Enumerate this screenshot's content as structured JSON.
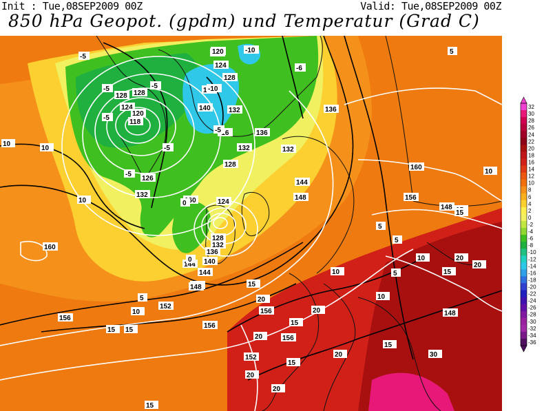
{
  "header": {
    "init": "Init : Tue,08SEP2009 00Z",
    "valid": "Valid: Tue,08SEP2009 00Z",
    "title": "850 hPa Geopot. (gpdm) und Temperatur (Grad C)"
  },
  "colorbar": {
    "labels": [
      "32",
      "30",
      "28",
      "26",
      "24",
      "22",
      "20",
      "18",
      "16",
      "14",
      "12",
      "10",
      "8",
      "6",
      "4",
      "2",
      "0",
      "-2",
      "-4",
      "-6",
      "-8",
      "-10",
      "-12",
      "-14",
      "-16",
      "-18",
      "-20",
      "-22",
      "-24",
      "-26",
      "-28",
      "-30",
      "-32",
      "-34",
      "-36"
    ],
    "colors": [
      "#f040d0",
      "#e81878",
      "#d00050",
      "#b8003a",
      "#a00028",
      "#8c0018",
      "#a81010",
      "#c01818",
      "#d02018",
      "#e03a14",
      "#ea5812",
      "#f07010",
      "#f5901a",
      "#f8b020",
      "#fcd030",
      "#ffee50",
      "#f0f060",
      "#c0e840",
      "#90d830",
      "#40c020",
      "#20b040",
      "#20c080",
      "#20d0c0",
      "#30c8e8",
      "#30a0e8",
      "#3070e0",
      "#3040d0",
      "#2020c0",
      "#4010b0",
      "#6010a8",
      "#8018a0",
      "#9820a0",
      "#a028a8",
      "#7a1a88",
      "#501060"
    ]
  },
  "map": {
    "geopotential_labels": [
      "120",
      "124",
      "128",
      "132",
      "136",
      "140",
      "118",
      "128",
      "124",
      "120",
      "124",
      "128",
      "132",
      "136",
      "140",
      "144",
      "148",
      "152",
      "156",
      "160",
      "126",
      "132",
      "144",
      "148",
      "156",
      "160",
      "148",
      "156",
      "152",
      "156",
      "148",
      "120",
      "128",
      "136",
      "132",
      "128",
      "132",
      "136",
      "144",
      "160",
      "156",
      "148"
    ],
    "temperature_labels": [
      "-5",
      "-10",
      "-5",
      "-5",
      "-5",
      "-10",
      "-5",
      "0",
      "-5",
      "0",
      "5",
      "10",
      "10",
      "15",
      "15",
      "20",
      "15",
      "20",
      "20",
      "15",
      "20",
      "10",
      "5",
      "10",
      "15",
      "20",
      "10",
      "5",
      "5",
      "10",
      "15",
      "20",
      "10",
      "15",
      "15",
      "20",
      "15",
      "20",
      "30",
      "-6",
      "-16",
      "-5",
      "10",
      "5",
      "15"
    ]
  }
}
